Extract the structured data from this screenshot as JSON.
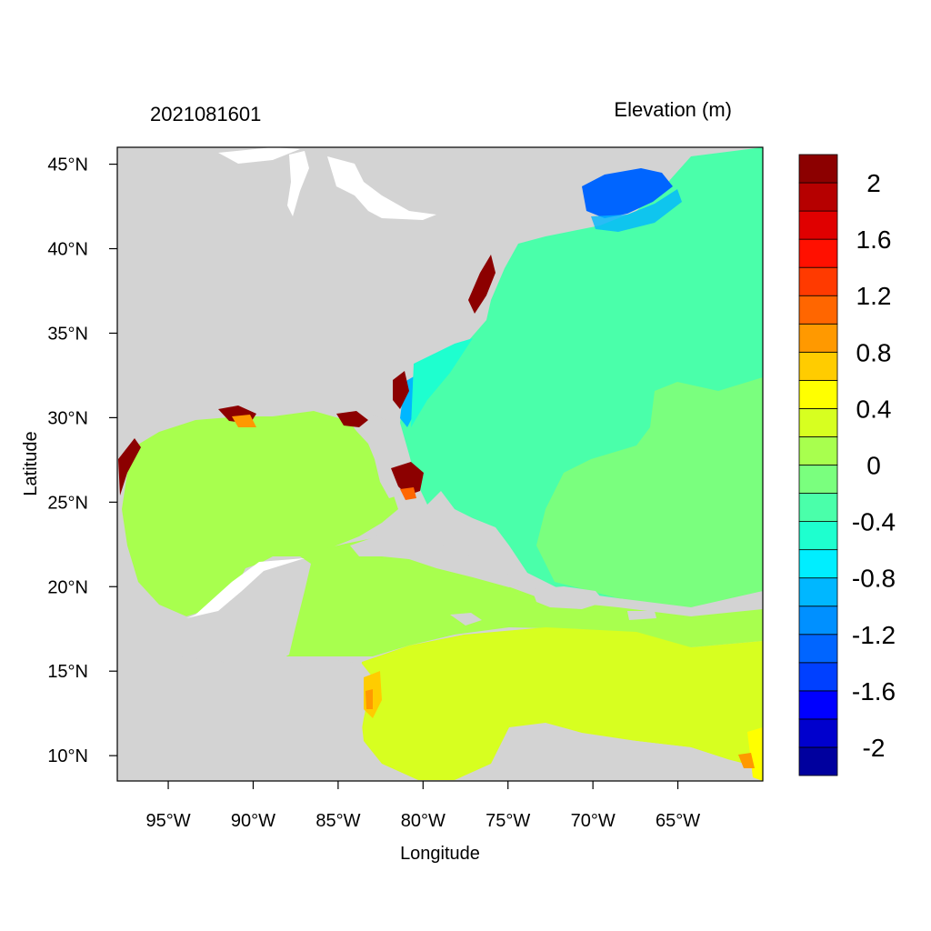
{
  "header": {
    "left_title": "2021081601",
    "right_title": "Elevation (m)"
  },
  "axes": {
    "xlabel": "Longitude",
    "ylabel": "Latitude",
    "xlim": [
      -98,
      -60
    ],
    "ylim": [
      8.5,
      46
    ],
    "x_ticks": [
      {
        "value": -95,
        "label": "95°W"
      },
      {
        "value": -90,
        "label": "90°W"
      },
      {
        "value": -85,
        "label": "85°W"
      },
      {
        "value": -80,
        "label": "80°W"
      },
      {
        "value": -75,
        "label": "75°W"
      },
      {
        "value": -70,
        "label": "70°W"
      },
      {
        "value": -65,
        "label": "65°W"
      }
    ],
    "y_ticks": [
      {
        "value": 45,
        "label": "45°N"
      },
      {
        "value": 40,
        "label": "40°N"
      },
      {
        "value": 35,
        "label": "35°N"
      },
      {
        "value": 30,
        "label": "30°N"
      },
      {
        "value": 25,
        "label": "25°N"
      },
      {
        "value": 20,
        "label": "20°N"
      },
      {
        "value": 15,
        "label": "15°N"
      },
      {
        "value": 10,
        "label": "10°N"
      }
    ]
  },
  "colorbar": {
    "colors": [
      "#00009e",
      "#0000cd",
      "#0000ff",
      "#0040ff",
      "#0065ff",
      "#0090ff",
      "#00b7ff",
      "#00eeff",
      "#1effcf",
      "#4affaa",
      "#7aff7e",
      "#a8ff4e",
      "#d7ff20",
      "#ffff00",
      "#ffcc00",
      "#ff9900",
      "#ff6600",
      "#ff3a00",
      "#ff1000",
      "#e00000",
      "#b60000",
      "#8c0000"
    ],
    "labels": [
      {
        "index": 21,
        "label": "2"
      },
      {
        "index": 19,
        "label": "1.6"
      },
      {
        "index": 17,
        "label": "1.2"
      },
      {
        "index": 15,
        "label": "0.8"
      },
      {
        "index": 13,
        "label": "0.4"
      },
      {
        "index": 11,
        "label": "0"
      },
      {
        "index": 9,
        "label": "-0.4"
      },
      {
        "index": 7,
        "label": "-0.8"
      },
      {
        "index": 5,
        "label": "-1.2"
      },
      {
        "index": 3,
        "label": "-1.6"
      },
      {
        "index": 1,
        "label": "-2"
      }
    ]
  },
  "map_colors": {
    "land": "#d3d3d3",
    "atlantic": "#4affaa",
    "atlantic_east": "#7aff7e",
    "gulf": "#a8ff4e",
    "caribbean": "#d7ff20",
    "gulf_of_maine": "#0065ff",
    "near_coast": "#1effcf",
    "surge_high": "#8c0000",
    "surge_mid": "#ff6600",
    "surge_low": "#ffcc00"
  }
}
